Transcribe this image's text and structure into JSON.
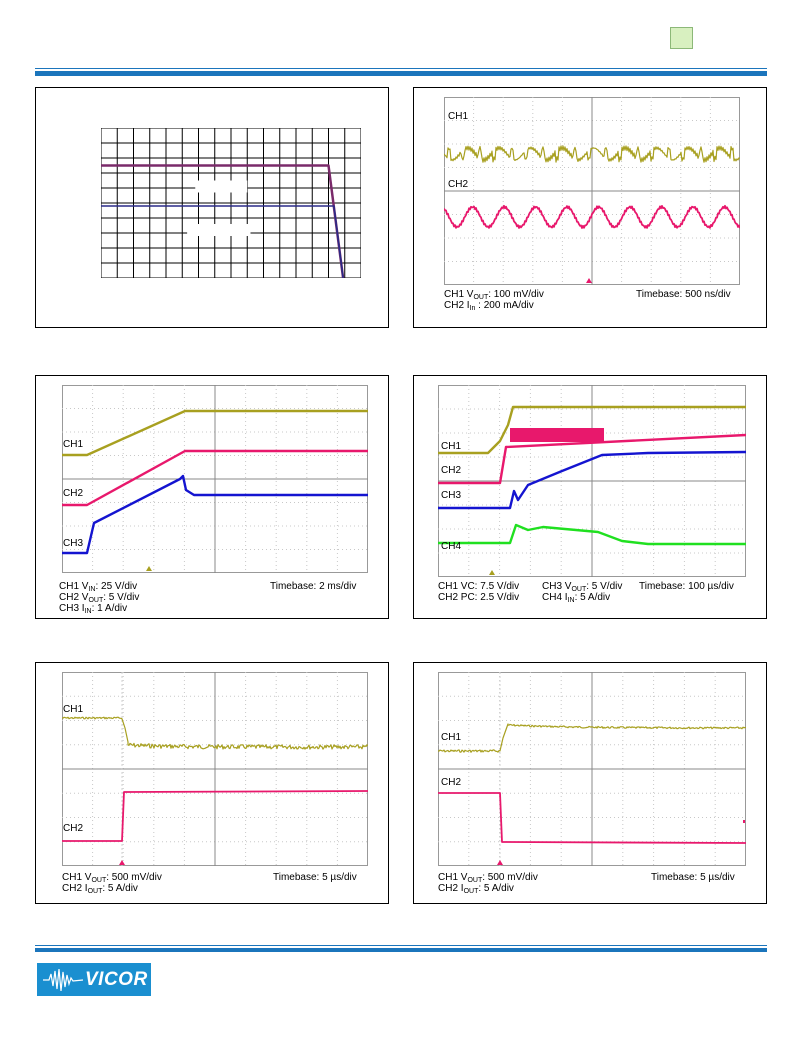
{
  "header": {
    "colors": {
      "rule": "#1b75bc",
      "badge": "#d8f0c0"
    }
  },
  "footer": {
    "logo_text": "VICOR",
    "colors": {
      "logo_bg": "#1a8fd0"
    }
  },
  "colors": {
    "ch1": "#a8a020",
    "ch2": "#e8186c",
    "ch3": "#1414d0",
    "ch4": "#20e020",
    "purple": "#7a2a6a",
    "navy": "#2a2a88"
  },
  "panels": {
    "derating": {
      "chart_data": {
        "type": "line",
        "grid_cols": 16,
        "grid_rows": 10,
        "series": [
          {
            "values": [
              [
                0,
                7.5
              ],
              [
                14,
                7.5
              ],
              [
                14.9,
                0
              ]
            ]
          },
          {
            "values": [
              [
                0,
                4.8
              ],
              [
                14.33,
                4.8
              ],
              [
                14.9,
                0
              ]
            ]
          }
        ]
      }
    },
    "ripple": {
      "ch1": "CH1",
      "ch2": "CH2",
      "cap1_a": "CH1 V",
      "cap1_sub": "OUT",
      "cap1_b": ": 100 mV/div",
      "timebase": "Timebase: 500 ns/div",
      "cap2_a": "CH2 I",
      "cap2_sub": "In",
      "cap2_b": " : 200 mA/div"
    },
    "startup": {
      "ch1": "CH1",
      "ch2": "CH2",
      "ch3": "CH3",
      "cap1_a": "CH1 V",
      "cap1_sub": "IN",
      "cap1_b": ": 25 V/div",
      "timebase": "Timebase: 2 ms/div",
      "cap2_a": "CH2 V",
      "cap2_sub": "OUT",
      "cap2_b": ": 5 V/div",
      "cap3_a": "CH3 I",
      "cap3_sub": "IN",
      "cap3_b": ": 1 A/div"
    },
    "pc_startup": {
      "ch1": "CH1",
      "ch2": "CH2",
      "ch3": "CH3",
      "ch4": "CH4",
      "cap1": "CH1 VC: 7.5 V/div",
      "cap2_a": "CH3 V",
      "cap2_sub": "OUT",
      "cap2_b": ": 5 V/div",
      "timebase": "Timebase: 100 µs/div",
      "cap3": "CH2 PC: 2.5 V/div",
      "cap4_a": "CH4 I",
      "cap4_sub": "IN",
      "cap4_b": ": 5 A/div"
    },
    "step_up": {
      "ch1": "CH1",
      "ch2": "CH2",
      "cap1_a": "CH1 V",
      "cap1_sub": "OUT",
      "cap1_b": ": 500 mV/div",
      "timebase": "Timebase: 5 µs/div",
      "cap2_a": "CH2 I",
      "cap2_sub": "OUT",
      "cap2_b": ": 5 A/div"
    },
    "step_down": {
      "ch1": "CH1",
      "ch2": "CH2",
      "cap1_a": "CH1 V",
      "cap1_sub": "OUT",
      "cap1_b": ": 500 mV/div",
      "timebase": "Timebase: 5 µs/div",
      "cap2_a": "CH2 I",
      "cap2_sub": "OUT",
      "cap2_b": ": 5 A/div"
    }
  }
}
